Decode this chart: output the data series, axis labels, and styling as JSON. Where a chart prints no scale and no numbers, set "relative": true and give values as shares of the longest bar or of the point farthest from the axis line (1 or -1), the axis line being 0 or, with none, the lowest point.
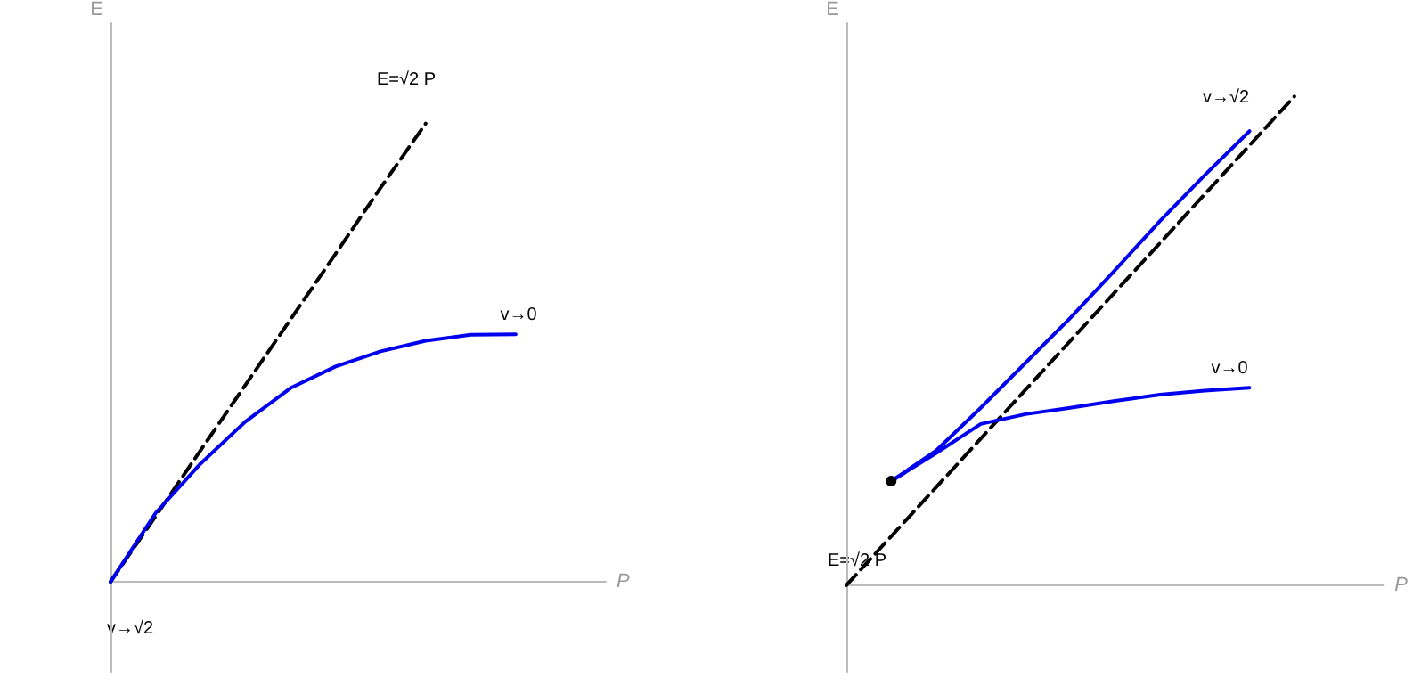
{
  "chart_data": [
    {
      "type": "line",
      "relative": true,
      "xlabel": "P",
      "ylabel": "E",
      "marker": "none",
      "categories": [
        null,
        null,
        null,
        null,
        null,
        null,
        null,
        null,
        null,
        null,
        null,
        null
      ],
      "series": [
        {
          "color": "#000000",
          "line_style": "dashed",
          "values": [
            0,
            0.143,
            0.287,
            0.43,
            0.573,
            0.716,
            0.86,
            1,
            null,
            null,
            null,
            null
          ]
        },
        {
          "color": "#0000ee",
          "line_style": "solid",
          "values": [
            0,
            0.15,
            0.258,
            0.35,
            0.423,
            0.47,
            0.503,
            0.526,
            0.539,
            0.54,
            null,
            null
          ]
        }
      ],
      "annotations": [
        "E=√2 P",
        "v→0",
        "v→√2"
      ]
    },
    {
      "type": "line",
      "relative": true,
      "xlabel": "P",
      "ylabel": "E",
      "marker": "none",
      "categories": [
        null,
        null,
        null,
        null,
        null,
        null,
        null,
        null,
        null,
        null,
        null,
        null,
        null
      ],
      "series": [
        {
          "color": "#000000",
          "line_style": "dashed",
          "values": [
            0,
            0.1,
            0.2,
            0.3,
            0.4,
            0.5,
            0.6,
            0.7,
            0.8,
            0.9,
            1,
            null,
            null
          ]
        },
        {
          "color": "#0000ee",
          "line_style": "solid",
          "values": [
            null,
            0.213,
            0.275,
            0.363,
            0.455,
            0.547,
            0.645,
            0.745,
            0.839,
            0.929,
            null,
            null,
            null
          ]
        },
        {
          "color": "#0000ee",
          "line_style": "solid",
          "values": [
            null,
            0.213,
            0.27,
            0.33,
            0.35,
            0.363,
            0.377,
            0.39,
            0.398,
            0.404,
            null,
            null,
            null
          ]
        },
        {
          "marker": "circle",
          "color": "#000000",
          "line_style": "solid",
          "values": [
            null,
            0.213,
            null,
            null,
            null,
            null,
            null,
            null,
            null,
            null,
            null,
            null,
            null
          ]
        }
      ],
      "annotations": [
        "v→√2",
        "v→0",
        "E=√2 P"
      ]
    }
  ]
}
